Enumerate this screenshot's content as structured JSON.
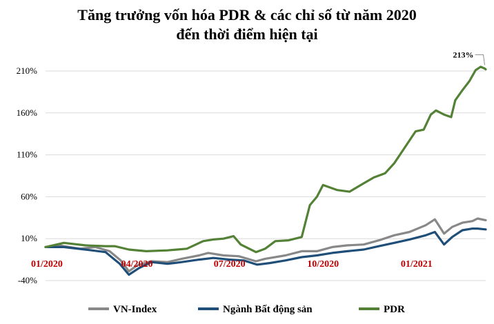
{
  "chart_data": {
    "type": "line",
    "title_lines": [
      "Tăng trưởng vốn hóa PDR & các chỉ số từ năm 2020",
      "đến thời điểm hiện tại"
    ],
    "y_axis": {
      "range": [
        -40,
        230
      ],
      "ticks": [
        -40,
        10,
        60,
        110,
        160,
        210
      ],
      "tick_labels": [
        "-40%",
        "10%",
        "60%",
        "110%",
        "160%",
        "210%"
      ],
      "unit": "%"
    },
    "x_axis": {
      "range": [
        "2020-01-02",
        "2021-03-10"
      ],
      "tick_labels": [
        {
          "date": "2020-01-01",
          "label": "01/2020"
        },
        {
          "date": "2020-04-01",
          "label": "04/2020"
        },
        {
          "date": "2020-07-01",
          "label": "07/2020"
        },
        {
          "date": "2020-10-01",
          "label": "10/2020"
        },
        {
          "date": "2021-01-01",
          "label": "01/2021"
        }
      ]
    },
    "grid": "horizontal",
    "legend_position": "bottom",
    "annotation": {
      "text": "213%",
      "series": "PDR",
      "date": "2021-03-09",
      "value": 213
    },
    "series": [
      {
        "name": "VN-Index",
        "color": "#888888",
        "points": [
          [
            "2020-01-02",
            0
          ],
          [
            "2020-01-15",
            2
          ],
          [
            "2020-02-05",
            -2
          ],
          [
            "2020-02-20",
            0
          ],
          [
            "2020-03-05",
            -5
          ],
          [
            "2020-03-16",
            -16
          ],
          [
            "2020-03-24",
            -29
          ],
          [
            "2020-04-01",
            -22
          ],
          [
            "2020-04-15",
            -17
          ],
          [
            "2020-05-01",
            -18
          ],
          [
            "2020-05-15",
            -14
          ],
          [
            "2020-06-01",
            -10
          ],
          [
            "2020-06-10",
            -7
          ],
          [
            "2020-06-25",
            -10
          ],
          [
            "2020-07-10",
            -11
          ],
          [
            "2020-07-27",
            -17
          ],
          [
            "2020-08-05",
            -14
          ],
          [
            "2020-08-25",
            -10
          ],
          [
            "2020-09-10",
            -5
          ],
          [
            "2020-09-25",
            -5
          ],
          [
            "2020-10-10",
            0
          ],
          [
            "2020-10-25",
            2
          ],
          [
            "2020-11-10",
            3
          ],
          [
            "2020-11-25",
            8
          ],
          [
            "2020-12-10",
            14
          ],
          [
            "2020-12-25",
            18
          ],
          [
            "2021-01-10",
            26
          ],
          [
            "2021-01-19",
            33
          ],
          [
            "2021-01-28",
            16
          ],
          [
            "2021-02-05",
            24
          ],
          [
            "2021-02-15",
            29
          ],
          [
            "2021-02-25",
            31
          ],
          [
            "2021-03-02",
            34
          ],
          [
            "2021-03-10",
            32
          ]
        ]
      },
      {
        "name": "Ngành Bất động sản",
        "color": "#1f4e79",
        "points": [
          [
            "2020-01-02",
            0
          ],
          [
            "2020-01-20",
            0
          ],
          [
            "2020-02-10",
            -3
          ],
          [
            "2020-03-01",
            -6
          ],
          [
            "2020-03-15",
            -20
          ],
          [
            "2020-03-24",
            -33
          ],
          [
            "2020-04-03",
            -25
          ],
          [
            "2020-04-15",
            -18
          ],
          [
            "2020-05-01",
            -20
          ],
          [
            "2020-05-15",
            -18
          ],
          [
            "2020-06-01",
            -15
          ],
          [
            "2020-06-15",
            -13
          ],
          [
            "2020-07-01",
            -15
          ],
          [
            "2020-07-15",
            -16
          ],
          [
            "2020-07-28",
            -21
          ],
          [
            "2020-08-10",
            -19
          ],
          [
            "2020-08-25",
            -16
          ],
          [
            "2020-09-10",
            -12
          ],
          [
            "2020-09-25",
            -10
          ],
          [
            "2020-10-10",
            -7
          ],
          [
            "2020-10-25",
            -5
          ],
          [
            "2020-11-10",
            -3
          ],
          [
            "2020-11-25",
            1
          ],
          [
            "2020-12-10",
            5
          ],
          [
            "2020-12-25",
            9
          ],
          [
            "2021-01-10",
            14
          ],
          [
            "2021-01-19",
            18
          ],
          [
            "2021-01-28",
            3
          ],
          [
            "2021-02-05",
            12
          ],
          [
            "2021-02-15",
            20
          ],
          [
            "2021-02-25",
            22
          ],
          [
            "2021-03-02",
            22
          ],
          [
            "2021-03-10",
            21
          ]
        ]
      },
      {
        "name": "PDR",
        "color": "#538135",
        "points": [
          [
            "2020-01-02",
            0
          ],
          [
            "2020-01-20",
            5
          ],
          [
            "2020-02-10",
            2
          ],
          [
            "2020-03-01",
            1
          ],
          [
            "2020-03-10",
            1
          ],
          [
            "2020-03-24",
            -3
          ],
          [
            "2020-04-10",
            -5
          ],
          [
            "2020-05-01",
            -4
          ],
          [
            "2020-05-20",
            -2
          ],
          [
            "2020-06-05",
            7
          ],
          [
            "2020-06-15",
            9
          ],
          [
            "2020-06-25",
            10
          ],
          [
            "2020-07-05",
            13
          ],
          [
            "2020-07-12",
            3
          ],
          [
            "2020-07-27",
            -6
          ],
          [
            "2020-08-05",
            -2
          ],
          [
            "2020-08-15",
            7
          ],
          [
            "2020-08-28",
            8
          ],
          [
            "2020-09-10",
            12
          ],
          [
            "2020-09-18",
            50
          ],
          [
            "2020-09-25",
            60
          ],
          [
            "2020-10-01",
            74
          ],
          [
            "2020-10-15",
            68
          ],
          [
            "2020-10-27",
            66
          ],
          [
            "2020-11-10",
            76
          ],
          [
            "2020-11-20",
            83
          ],
          [
            "2020-12-01",
            88
          ],
          [
            "2020-12-10",
            100
          ],
          [
            "2020-12-20",
            118
          ],
          [
            "2020-12-31",
            138
          ],
          [
            "2021-01-08",
            140
          ],
          [
            "2021-01-15",
            158
          ],
          [
            "2021-01-20",
            163
          ],
          [
            "2021-01-28",
            158
          ],
          [
            "2021-02-04",
            155
          ],
          [
            "2021-02-08",
            175
          ],
          [
            "2021-02-15",
            187
          ],
          [
            "2021-02-22",
            198
          ],
          [
            "2021-02-28",
            211
          ],
          [
            "2021-03-05",
            215
          ],
          [
            "2021-03-09",
            213
          ],
          [
            "2021-03-10",
            212
          ]
        ]
      }
    ]
  }
}
